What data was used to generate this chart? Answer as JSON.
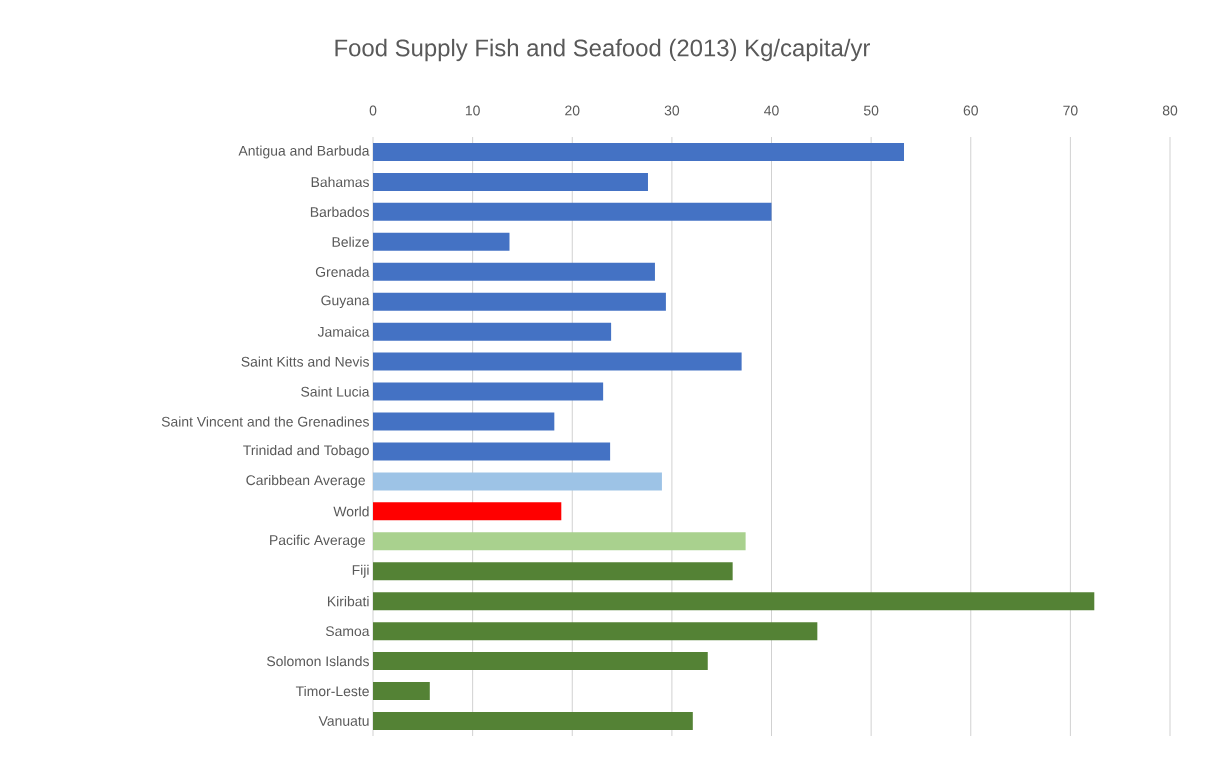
{
  "chart_data": {
    "type": "bar",
    "orientation": "horizontal",
    "title": "Food Supply Fish and Seafood (2013) Kg/capita/yr",
    "categories": [
      "Antigua and Barbuda",
      "Bahamas",
      "Barbados",
      "Belize",
      "Grenada",
      "Guyana",
      "Jamaica",
      "Saint Kitts and Nevis",
      "Saint Lucia",
      "Saint Vincent and the Grenadines",
      "Trinidad and Tobago",
      "Caribbean Average ",
      "World",
      "Pacific Average ",
      "Fiji",
      "Kiribati",
      "Samoa",
      "Solomon Islands",
      "Timor-Leste",
      "Vanuatu"
    ],
    "values": [
      53.3,
      27.6,
      40.0,
      13.7,
      28.3,
      29.4,
      23.9,
      37.0,
      23.1,
      18.2,
      23.8,
      29.0,
      18.9,
      37.4,
      36.1,
      72.4,
      44.6,
      33.6,
      5.7,
      32.1
    ],
    "colors": [
      "#4472c4",
      "#4472c4",
      "#4472c4",
      "#4472c4",
      "#4472c4",
      "#4472c4",
      "#4472c4",
      "#4472c4",
      "#4472c4",
      "#4472c4",
      "#4472c4",
      "#9dc3e6",
      "#ff0000",
      "#a9d18e",
      "#548235",
      "#548235",
      "#548235",
      "#548235",
      "#548235",
      "#548235"
    ],
    "xlim": [
      0,
      80
    ],
    "xticks": [
      0,
      10,
      20,
      30,
      40,
      50,
      60,
      70,
      80
    ],
    "grid": "x"
  }
}
